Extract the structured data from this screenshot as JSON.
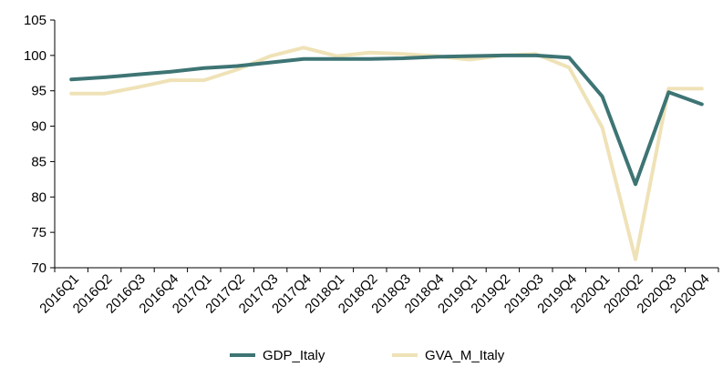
{
  "chart_data": {
    "type": "line",
    "title": "",
    "xlabel": "",
    "ylabel": "",
    "ylim": [
      70,
      105
    ],
    "yticks": [
      70,
      75,
      80,
      85,
      90,
      95,
      100,
      105
    ],
    "grid": false,
    "legend_position": "bottom",
    "categories": [
      "2016Q1",
      "2016Q2",
      "2016Q3",
      "2016Q4",
      "2017Q1",
      "2017Q2",
      "2017Q3",
      "2017Q4",
      "2018Q1",
      "2018Q2",
      "2018Q3",
      "2018Q4",
      "2019Q1",
      "2019Q2",
      "2019Q3",
      "2019Q4",
      "2020Q1",
      "2020Q2",
      "2020Q3",
      "2020Q4"
    ],
    "series": [
      {
        "name": "GDP_Italy",
        "color": "#3e7474",
        "values": [
          96.6,
          96.9,
          97.3,
          97.7,
          98.2,
          98.5,
          99.0,
          99.5,
          99.5,
          99.5,
          99.6,
          99.8,
          99.9,
          100.0,
          100.0,
          99.7,
          94.2,
          81.8,
          94.8,
          93.1
        ]
      },
      {
        "name": "GVA_M_Italy",
        "color": "#efe2b7",
        "values": [
          94.6,
          94.6,
          95.5,
          96.5,
          96.5,
          98.0,
          99.9,
          101.1,
          99.9,
          100.4,
          100.2,
          99.9,
          99.4,
          100.0,
          100.2,
          98.3,
          89.8,
          71.2,
          95.3,
          95.3
        ]
      }
    ]
  }
}
